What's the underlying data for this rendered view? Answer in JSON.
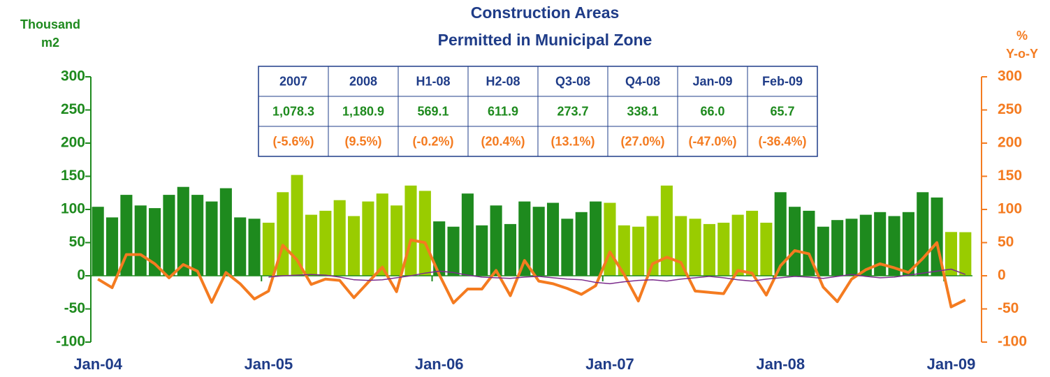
{
  "chart_data": {
    "type": "bar_line",
    "title": [
      "Construction Areas",
      "Permitted in Municipal Zone"
    ],
    "y_label": [
      "Thousand",
      "m2"
    ],
    "y2_label": [
      "%",
      "Y-o-Y"
    ],
    "categories": [
      "Jan-04",
      null,
      null,
      null,
      null,
      null,
      null,
      null,
      null,
      null,
      null,
      null,
      "Jan-05",
      null,
      null,
      null,
      null,
      null,
      null,
      null,
      null,
      null,
      null,
      null,
      "Jan-06",
      null,
      null,
      null,
      null,
      null,
      null,
      null,
      null,
      null,
      null,
      null,
      "Jan-07",
      null,
      null,
      null,
      null,
      null,
      null,
      null,
      null,
      null,
      null,
      null,
      "Jan-08",
      null,
      null,
      null,
      null,
      null,
      null,
      null,
      null,
      null,
      null,
      null,
      "Jan-09",
      null
    ],
    "series": [
      {
        "name": "Area",
        "type": "bar",
        "colors": [
          "#1e8a1e",
          "#99cc00"
        ],
        "values": [
          104,
          88,
          122,
          106,
          102,
          122,
          134,
          122,
          112,
          132,
          88,
          86,
          80,
          126,
          152,
          92,
          98,
          114,
          90,
          112,
          124,
          106,
          136,
          128,
          82,
          74,
          124,
          76,
          106,
          78,
          112,
          104,
          110,
          86,
          96,
          112,
          110,
          76,
          74,
          90,
          136,
          90,
          86,
          78,
          80,
          92,
          98,
          80,
          126,
          104,
          98,
          74,
          84,
          86,
          92,
          96,
          90,
          96,
          126,
          118,
          66.0,
          65.7
        ]
      },
      {
        "name": "Y-o-Y",
        "type": "line",
        "axis": "y2",
        "color": "#f47b20",
        "width": 4,
        "values": [
          -5,
          -18,
          32,
          32,
          18,
          -3,
          17,
          7,
          -40,
          5,
          -12,
          -35,
          -23,
          46,
          24,
          -13,
          -5,
          -7,
          -33,
          -10,
          13,
          -24,
          54,
          50,
          2,
          -41,
          -20,
          -20,
          8,
          -30,
          23,
          -8,
          -12,
          -19,
          -28,
          -15,
          36,
          2,
          -38,
          18,
          28,
          20,
          -23,
          -25,
          -27,
          8,
          4,
          -29,
          15,
          38,
          33,
          -17,
          -39,
          -5,
          9,
          18,
          12,
          5,
          26,
          50,
          -47.0,
          -36.4
        ]
      },
      {
        "name": "Trend",
        "type": "line",
        "axis": "y2",
        "color": "#7b2c8c",
        "width": 1.5,
        "values": [
          null,
          null,
          null,
          null,
          null,
          null,
          null,
          null,
          null,
          null,
          null,
          null,
          -2,
          0,
          1,
          2,
          1,
          -2,
          -6,
          -7,
          -6,
          -3,
          0,
          4,
          7,
          5,
          1,
          -2,
          -3,
          -4,
          -2,
          -1,
          -3,
          -5,
          -6,
          -10,
          -12,
          -9,
          -7,
          -6,
          -8,
          -5,
          -3,
          -1,
          -3,
          -6,
          -8,
          -5,
          -3,
          -1,
          -2,
          -4,
          -1,
          2,
          -1,
          -3,
          -2,
          1,
          4,
          7,
          10,
          2
        ]
      }
    ],
    "ylim": [
      -100,
      300
    ],
    "yticks": [
      -100,
      -50,
      0,
      50,
      100,
      150,
      200,
      250,
      300
    ],
    "y2lim": [
      -100,
      300
    ],
    "y2ticks": [
      -100,
      -50,
      0,
      50,
      100,
      150,
      200,
      250,
      300
    ],
    "y_color": "#1e8a1e",
    "y2_color": "#f47b20",
    "table": {
      "headers": [
        "2007",
        "2008",
        "H1-08",
        "H2-08",
        "Q3-08",
        "Q4-08",
        "Jan-09",
        "Feb-09"
      ],
      "values": [
        "1,078.3",
        "1,180.9",
        "569.1",
        "611.9",
        "273.7",
        "338.1",
        "66.0",
        "65.7"
      ],
      "changes": [
        "(-5.6%)",
        "(9.5%)",
        "(-0.2%)",
        "(20.4%)",
        "(13.1%)",
        "(27.0%)",
        "(-47.0%)",
        "(-36.4%)"
      ]
    }
  }
}
